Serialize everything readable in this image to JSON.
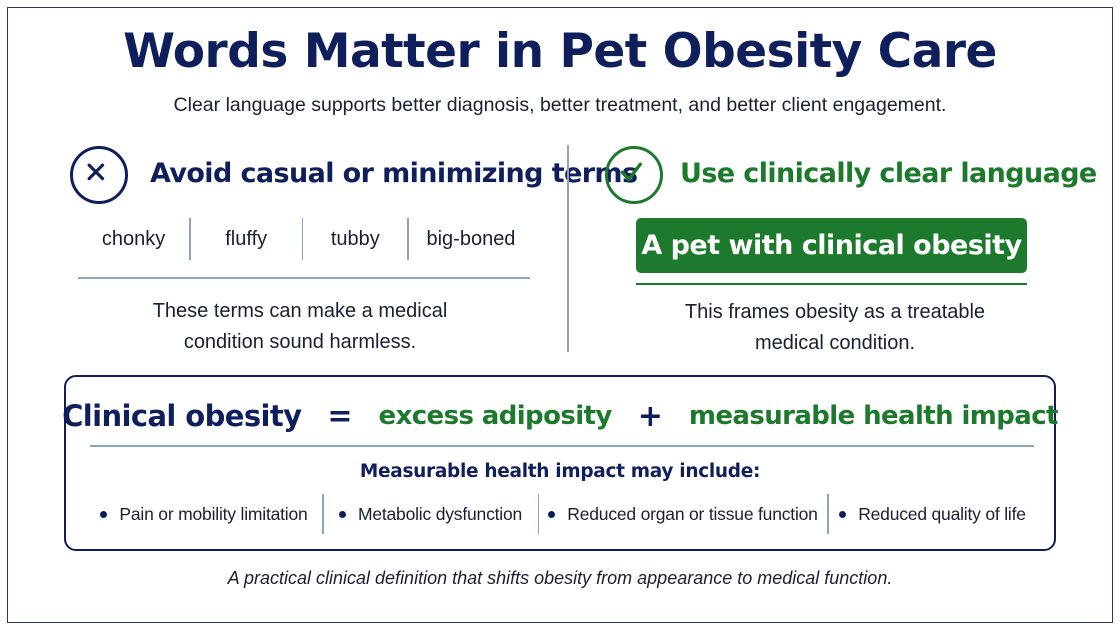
{
  "title": "Words Matter in Pet Obesity Care",
  "subtitle": "Clear language supports better diagnosis, better treatment, and better client engagement.",
  "avoid": {
    "icon": "x-circle-icon",
    "heading": "Avoid casual or minimizing terms",
    "terms": [
      "chonky",
      "fluffy",
      "tubby",
      "big-boned"
    ],
    "note": "These terms can make a medical condition sound harmless."
  },
  "use": {
    "icon": "check-circle-icon",
    "heading": "Use clinically clear language",
    "phrase": "A pet with clinical obesity",
    "note": "This frames obesity as a treatable medical condition."
  },
  "definition": {
    "term": "Clinical obesity",
    "equals": "=",
    "component_1": "excess adiposity",
    "plus": "+",
    "component_2": "measurable health impact",
    "impact_heading": "Measurable health impact may include:",
    "impacts": [
      "Pain or mobility limitation",
      "Metabolic dysfunction",
      "Reduced organ or tissue function",
      "Reduced quality of life"
    ]
  },
  "footer": "A practical clinical definition that shifts obesity from appearance to medical function.",
  "colors": {
    "navy": "#0f1f5c",
    "green": "#1d7a2c",
    "divider": "#8fa4bf"
  }
}
